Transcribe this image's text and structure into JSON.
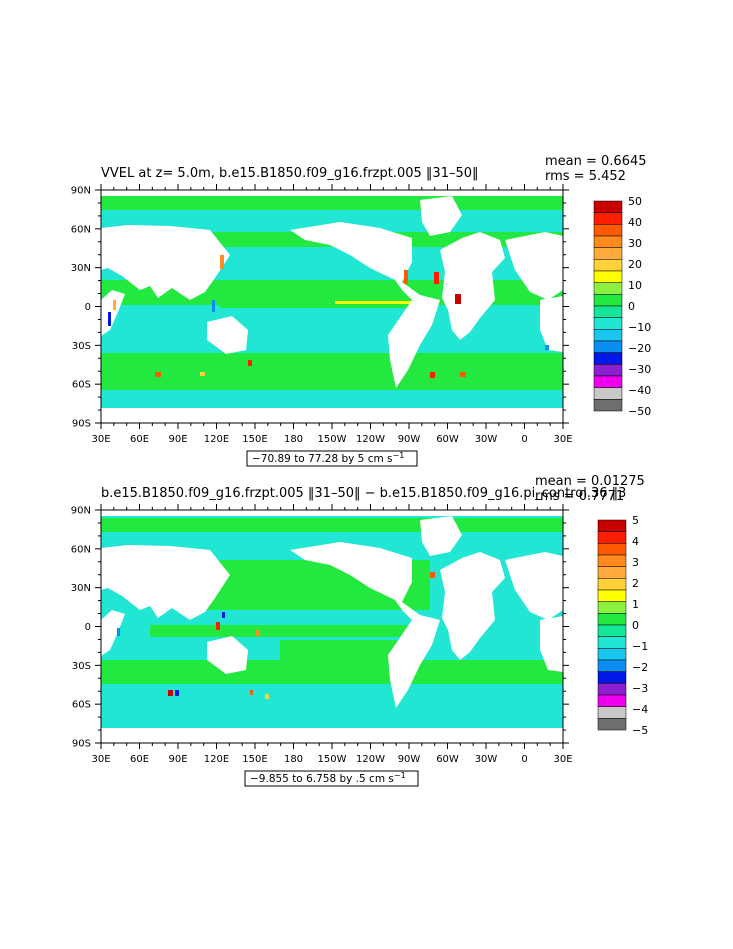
{
  "colors": {
    "ocean_pos": "#22e840",
    "ocean_neg": "#22e6d4",
    "land": "#ffffff",
    "frame": "#000000"
  },
  "panels": [
    {
      "title": "VVEL at z=    5.0m, b.e15.B1850.f09_g16.frzpt.005 ‖31–50‖",
      "stat_mean": "mean = 0.6645",
      "stat_rms": "rms = 5.452",
      "range_text": "−70.89 to 77.28 by 5 cm s",
      "range_exp": "−1",
      "colorbar_labels": [
        "50",
        "40",
        "30",
        "20",
        "10",
        "0",
        "−10",
        "−20",
        "−30",
        "−40",
        "−50"
      ],
      "lat_labels": [
        "90N",
        "60N",
        "30N",
        "0",
        "30S",
        "60S",
        "90S"
      ],
      "lon_labels": [
        "30E",
        "60E",
        "90E",
        "120E",
        "150E",
        "180",
        "150W",
        "120W",
        "90W",
        "60W",
        "30W",
        "0",
        "30E"
      ]
    },
    {
      "title": "b.e15.B1850.f09_g16.frzpt.005 ‖31–50‖ − b.e15.B1850.f09_g16.pi_control.36 ‖3",
      "stat_mean": "mean = 0.01275",
      "stat_rms": "rms = 0.7771",
      "range_text": "−9.855 to 6.758 by .5 cm s",
      "range_exp": "−1",
      "colorbar_labels": [
        "5",
        "4",
        "3",
        "2",
        "1",
        "0",
        "−1",
        "−2",
        "−3",
        "−4",
        "−5"
      ],
      "lat_labels": [
        "90N",
        "60N",
        "30N",
        "0",
        "30S",
        "60S",
        "90S"
      ],
      "lon_labels": [
        "30E",
        "60E",
        "90E",
        "120E",
        "150E",
        "180",
        "150W",
        "120W",
        "90W",
        "60W",
        "30W",
        "0",
        "30E"
      ]
    }
  ],
  "colorbar_colors": [
    "#6e6e6e",
    "#c8c8c8",
    "#ee00ee",
    "#8c20d0",
    "#0018e6",
    "#0a8ef2",
    "#19c6ee",
    "#22e6d4",
    "#16e69a",
    "#22e840",
    "#8cf040",
    "#ffff00",
    "#ffd23a",
    "#ffaa3c",
    "#ff8a1e",
    "#ff5a00",
    "#ff1e00",
    "#c80000"
  ],
  "chart_data": [
    {
      "type": "heatmap",
      "title": "VVEL at z=    5.0m, b.e15.B1850.f09_g16.frzpt.005 ‖31–50‖",
      "xlabel": "",
      "ylabel": "",
      "x_ticks": [
        "30E",
        "60E",
        "90E",
        "120E",
        "150E",
        "180",
        "150W",
        "120W",
        "90W",
        "60W",
        "30W",
        "0",
        "30E"
      ],
      "y_ticks": [
        "90N",
        "60N",
        "30N",
        "0",
        "30S",
        "60S",
        "90S"
      ],
      "colorbar": {
        "min": -50,
        "max": 50,
        "labels": [
          50,
          40,
          30,
          20,
          10,
          0,
          -10,
          -20,
          -30,
          -40,
          -50
        ]
      },
      "stats": {
        "mean": 0.6645,
        "rms": 5.452
      },
      "range": {
        "min": -70.89,
        "max": 77.28,
        "interval": 5,
        "units": "cm s-1"
      }
    },
    {
      "type": "heatmap",
      "title": "b.e15.B1850.f09_g16.frzpt.005 ‖31–50‖ − b.e15.B1850.f09_g16.pi_control.36 ‖3",
      "xlabel": "",
      "ylabel": "",
      "x_ticks": [
        "30E",
        "60E",
        "90E",
        "120E",
        "150E",
        "180",
        "150W",
        "120W",
        "90W",
        "60W",
        "30W",
        "0",
        "30E"
      ],
      "y_ticks": [
        "90N",
        "60N",
        "30N",
        "0",
        "30S",
        "60S",
        "90S"
      ],
      "colorbar": {
        "min": -5,
        "max": 5,
        "labels": [
          5,
          4,
          3,
          2,
          1,
          0,
          -1,
          -2,
          -3,
          -4,
          -5
        ]
      },
      "stats": {
        "mean": 0.01275,
        "rms": 0.7771
      },
      "range": {
        "min": -9.855,
        "max": 6.758,
        "interval": 0.5,
        "units": "cm s-1"
      }
    }
  ]
}
